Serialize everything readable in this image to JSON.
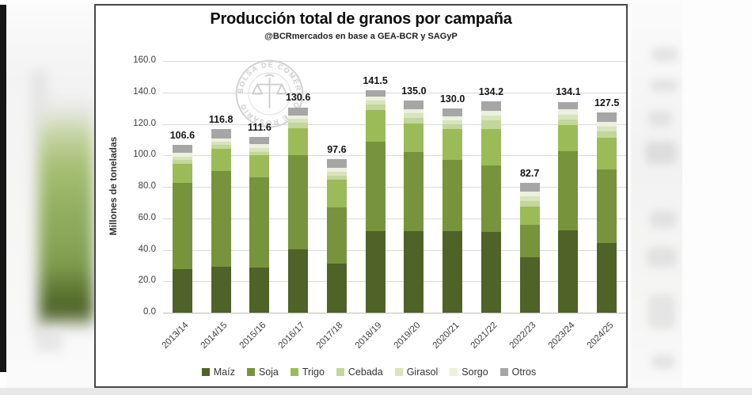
{
  "chart_data": {
    "type": "bar",
    "stacked": true,
    "title": "Producción total de granos por campaña",
    "subtitle": "@BCRmercados en base a GEA-BCR y SAGyP",
    "ylabel": "Millones de toneladas",
    "ylim": [
      0,
      160
    ],
    "ytick_step": 20,
    "ytick_labels": [
      "0.0",
      "20.0",
      "40.0",
      "60.0",
      "80.0",
      "100.0",
      "120.0",
      "140.0",
      "160.0"
    ],
    "grid": true,
    "legend_position": "bottom",
    "categories": [
      "2013/14",
      "2014/15",
      "2015/16",
      "2016/17",
      "2017/18",
      "2018/19",
      "2019/20",
      "2020/21",
      "2021/22",
      "2022/23",
      "2023/24",
      "2024/25"
    ],
    "series": [
      {
        "name": "Maíz",
        "color": "#4F6228",
        "values": [
          27.7,
          29.4,
          28.9,
          40.3,
          31.4,
          51.7,
          52.0,
          51.7,
          51.2,
          35.2,
          52.4,
          44.1
        ]
      },
      {
        "name": "Soja",
        "color": "#77933C",
        "values": [
          54.9,
          60.7,
          57.0,
          59.6,
          35.7,
          57.1,
          49.9,
          45.6,
          42.3,
          20.5,
          50.0,
          46.8
        ]
      },
      {
        "name": "Trigo",
        "color": "#9BBB59",
        "values": [
          11.8,
          13.9,
          14.0,
          17.6,
          17.3,
          20.1,
          18.6,
          19.3,
          23.1,
          11.8,
          17.1,
          20.2
        ]
      },
      {
        "name": "Cebada",
        "color": "#C3D69B",
        "values": [
          2.6,
          2.6,
          2.5,
          3.3,
          2.9,
          3.3,
          3.4,
          3.4,
          5.5,
          3.3,
          3.4,
          3.9
        ]
      },
      {
        "name": "Girasol",
        "color": "#D7E4BD",
        "values": [
          2.3,
          2.2,
          2.5,
          2.6,
          2.5,
          2.6,
          2.8,
          2.5,
          3.0,
          3.0,
          3.0,
          3.3
        ]
      },
      {
        "name": "Sorgo",
        "color": "#EBF1DE",
        "values": [
          2.2,
          2.0,
          2.1,
          2.1,
          2.2,
          2.5,
          2.5,
          2.5,
          3.0,
          3.4,
          3.3,
          2.9
        ]
      },
      {
        "name": "Otros",
        "color": "#A6A6A6",
        "values": [
          5.1,
          6.0,
          4.6,
          5.1,
          5.6,
          4.2,
          5.8,
          5.0,
          6.1,
          5.5,
          4.9,
          6.3
        ]
      }
    ],
    "totals": [
      106.6,
      116.8,
      111.6,
      130.6,
      97.6,
      141.5,
      135.0,
      130.0,
      134.2,
      82.7,
      134.1,
      127.5
    ],
    "total_labels": [
      "106.6",
      "116.8",
      "111.6",
      "130.6",
      "97.6",
      "141.5",
      "135.0",
      "130.0",
      "134.2",
      "82.7",
      "134.1",
      "127.5"
    ]
  },
  "watermark": {
    "text": "BOLSA DE COMERCIO DE ROSARIO"
  },
  "colors": {
    "gridline": "#DADADA",
    "axis_baseline": "#BDBDBD",
    "panel_border": "#474747",
    "watermark_gray": "#CDCDCD"
  }
}
